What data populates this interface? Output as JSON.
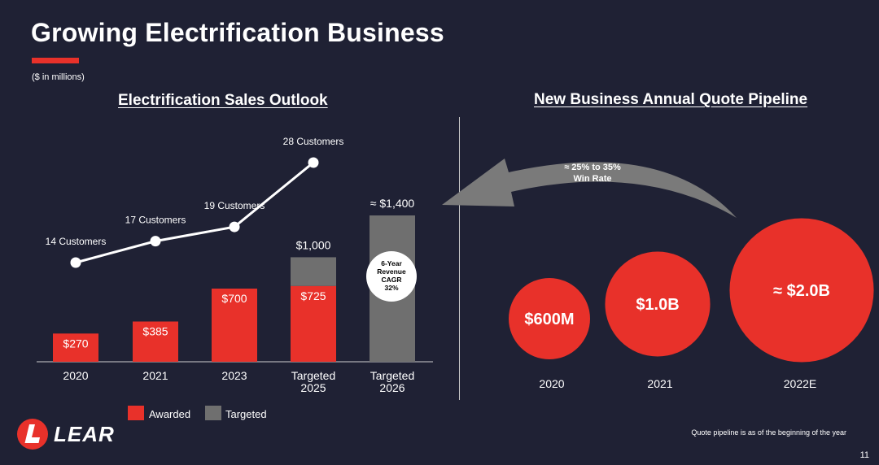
{
  "header": {
    "title": "Growing Electrification Business",
    "units": "($ in millions)",
    "page_number": "11"
  },
  "colors": {
    "background": "#1f2134",
    "awarded": "#e8312a",
    "targeted": "#6f6f6f",
    "accent": "#e8312a",
    "arrow": "#7a7a7a"
  },
  "chart_data": [
    {
      "type": "bar",
      "title": "Electrification Sales Outlook",
      "categories": [
        "2020",
        "2021",
        "2023",
        "Targeted\n2025",
        "Targeted\n2026"
      ],
      "series": [
        {
          "name": "Awarded",
          "values": [
            270,
            385,
            700,
            725,
            0
          ]
        },
        {
          "name": "Targeted",
          "values": [
            0,
            0,
            0,
            275,
            1400
          ]
        }
      ],
      "value_labels": [
        "$270",
        "$385",
        "$700",
        "$725",
        null
      ],
      "total_labels": [
        null,
        null,
        null,
        "$1,000",
        "≈ $1,400"
      ],
      "ylim": [
        0,
        1400
      ],
      "legend": "bottom",
      "customers_line": {
        "type": "line",
        "values": [
          14,
          17,
          19,
          28
        ],
        "labels": [
          "14 Customers",
          "17 Customers",
          "19 Customers",
          "28 Customers"
        ]
      },
      "annotation": "6-Year\nRevenue\nCAGR\n32%"
    },
    {
      "type": "bubble",
      "title": "New Business Annual Quote Pipeline",
      "categories": [
        "2020",
        "2021",
        "2022E"
      ],
      "values": [
        600,
        1000,
        2000
      ],
      "labels": [
        "$600M",
        "$1.0B",
        "≈ $2.0B"
      ],
      "arrow_label": "≈ 25% to 35%\nWin Rate"
    }
  ],
  "footnote": "Quote pipeline is as of the beginning of the year",
  "logo": {
    "text": "LEAR"
  }
}
